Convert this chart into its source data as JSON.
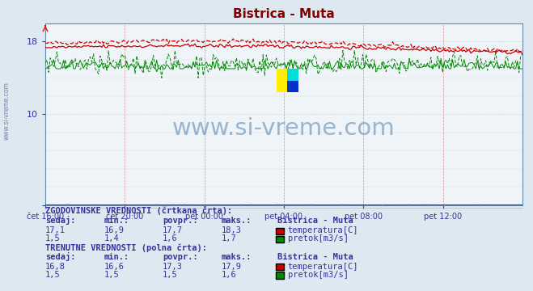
{
  "title": "Bistrica - Muta",
  "title_color": "#800000",
  "bg_color": "#dde8f0",
  "plot_bg_color": "#eef4f8",
  "ylim": [
    0,
    20
  ],
  "ytick_labels": [
    "",
    "10",
    "18"
  ],
  "ytick_vals": [
    0,
    10,
    18
  ],
  "xlabel_ticks": [
    "čet 16:00",
    "čet 20:00",
    "pet 00:00",
    "pet 04:00",
    "pet 08:00",
    "pet 12:00"
  ],
  "n_points": 288,
  "temp_color": "#cc0000",
  "flow_color": "#008800",
  "level_color": "#0000cc",
  "watermark_text": "www.si-vreme.com",
  "watermark_color": "#336699",
  "side_text": "www.si-vreme.com",
  "temp_hist_avg": 17.7,
  "temp_hist_min": 16.9,
  "temp_hist_max": 18.3,
  "temp_curr_avg": 17.3,
  "temp_curr_min": 16.6,
  "temp_curr_max": 17.9,
  "flow_hist_avg": 1.6,
  "flow_hist_min": 1.4,
  "flow_hist_max": 1.7,
  "flow_curr_avg": 1.5,
  "flow_curr_min": 1.5,
  "flow_curr_max": 1.6,
  "hist_header": "ZGODOVINSKE VREDNOSTI (črtkana črta):",
  "curr_header": "TRENUTNE VREDNOSTI (polna črta):",
  "col_headers": [
    "sedaj:",
    "min.:",
    "povpr.:",
    "maks.:",
    "Bistrica - Muta"
  ],
  "hist_temp_vals": [
    "17,1",
    "16,9",
    "17,7",
    "18,3"
  ],
  "hist_flow_vals": [
    "1,5",
    "1,4",
    "1,6",
    "1,7"
  ],
  "curr_temp_vals": [
    "16,8",
    "16,6",
    "17,3",
    "17,9"
  ],
  "curr_flow_vals": [
    "1,5",
    "1,5",
    "1,5",
    "1,6"
  ],
  "temp_label": "temperatura[C]",
  "flow_label": "pretok[m3/s]"
}
